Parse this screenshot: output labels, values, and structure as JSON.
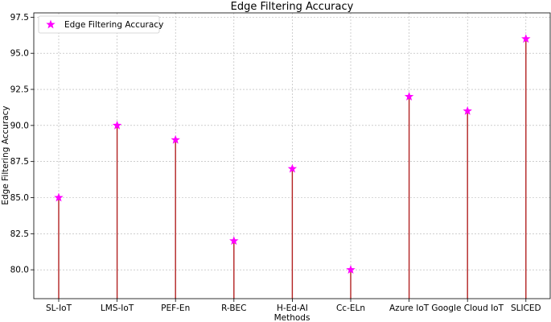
{
  "chart_data": {
    "type": "stem",
    "title": "Edge Filtering Accuracy",
    "xlabel": "Methods",
    "ylabel": "Edge Filtering Accuracy",
    "categories": [
      "SL-IoT",
      "LMS-IoT",
      "PEF-En",
      "R-BEC",
      "H-Ed-AI",
      "Cc-ELn",
      "Azure IoT",
      "Google Cloud IoT",
      "SLICED"
    ],
    "series": [
      {
        "name": "Edge Filtering Accuracy",
        "values": [
          85,
          90,
          89,
          82,
          87,
          80,
          92,
          91,
          96
        ]
      }
    ],
    "ylim": [
      78,
      97.8
    ],
    "yticks": [
      "80.0",
      "82.5",
      "85.0",
      "87.5",
      "90.0",
      "92.5",
      "95.0",
      "97.5"
    ],
    "grid": true,
    "legend_position": "top-left",
    "colors": {
      "stem": "#b22222",
      "marker": "#ff00ff",
      "grid": "#b0b0b0"
    }
  }
}
